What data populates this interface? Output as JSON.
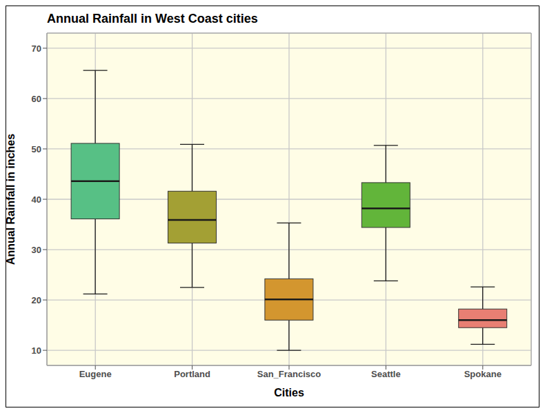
{
  "chart_data": {
    "type": "box",
    "title": "Annual Rainfall in West Coast cities",
    "x_label": "Cities",
    "y_label": "Annual Rainfall in inches",
    "categories": [
      "Eugene",
      "Portland",
      "San_Francisco",
      "Seattle",
      "Spokane"
    ],
    "min": [
      21.2,
      22.5,
      10.0,
      23.8,
      11.2
    ],
    "q1": [
      36.1,
      31.3,
      16.0,
      34.4,
      14.5
    ],
    "median": [
      43.6,
      35.9,
      20.1,
      38.2,
      16.0
    ],
    "q3": [
      51.1,
      41.6,
      24.2,
      43.3,
      18.2
    ],
    "max": [
      65.6,
      50.9,
      35.3,
      50.7,
      22.6
    ],
    "colors": [
      "#57c085",
      "#a3a034",
      "#d3962f",
      "#62b53a",
      "#e87f73"
    ],
    "ylim": [
      7,
      73
    ],
    "yticks": [
      10,
      20,
      30,
      40,
      50,
      60,
      70
    ],
    "grid": true
  }
}
